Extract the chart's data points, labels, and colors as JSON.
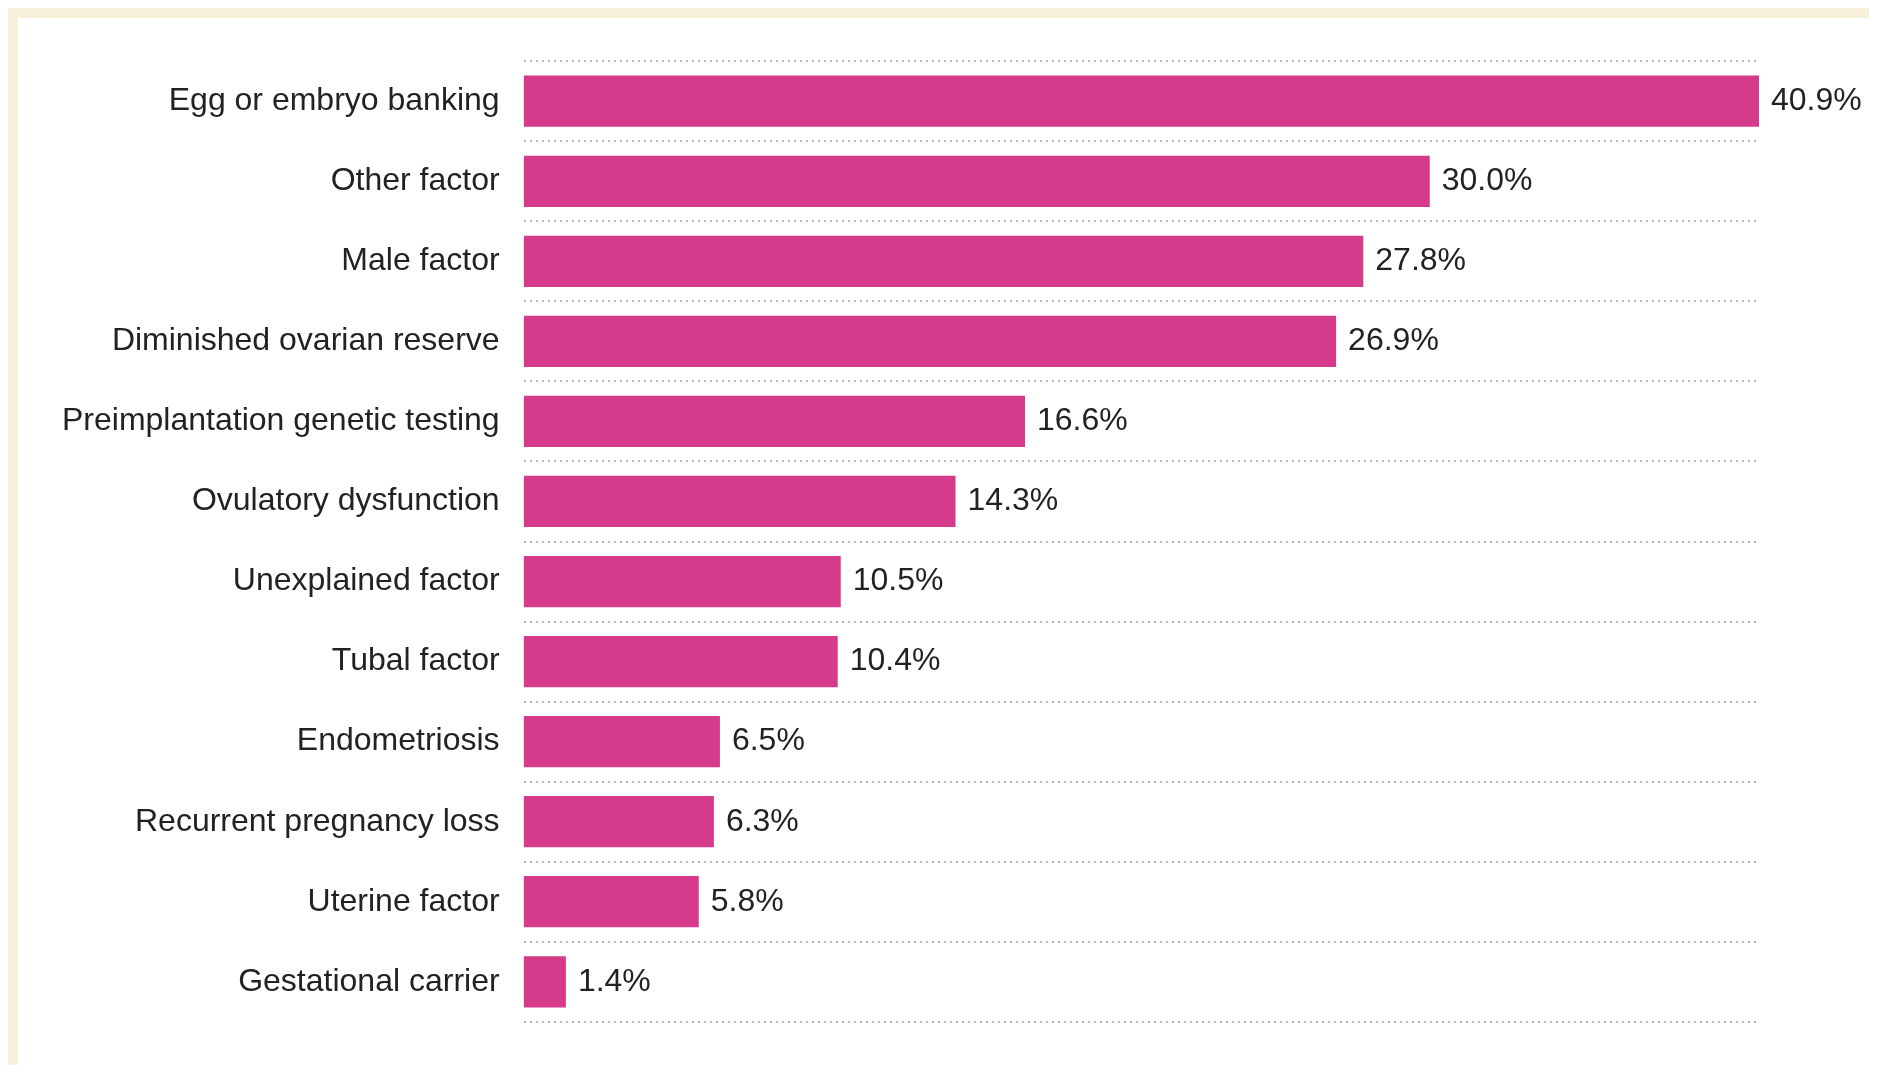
{
  "chart_data": {
    "type": "bar",
    "orientation": "horizontal",
    "categories": [
      "Egg or embryo banking",
      "Other factor",
      "Male factor",
      "Diminished ovarian reserve",
      "Preimplantation genetic testing",
      "Ovulatory dysfunction",
      "Unexplained factor",
      "Tubal factor",
      "Endometriosis",
      "Recurrent pregnancy loss",
      "Uterine factor",
      "Gestational carrier"
    ],
    "values": [
      40.9,
      30.0,
      27.8,
      26.9,
      16.6,
      14.3,
      10.5,
      10.4,
      6.5,
      6.3,
      5.8,
      1.4
    ],
    "value_labels": [
      "40.9%",
      "30.0%",
      "27.8%",
      "26.9%",
      "16.6%",
      "14.3%",
      "10.5%",
      "10.4%",
      "6.5%",
      "6.3%",
      "5.8%",
      "1.4%"
    ],
    "color": "#d63b8b",
    "xlim": [
      0,
      40.9
    ],
    "grid": "y",
    "tick_labels": "y",
    "legend": false
  }
}
